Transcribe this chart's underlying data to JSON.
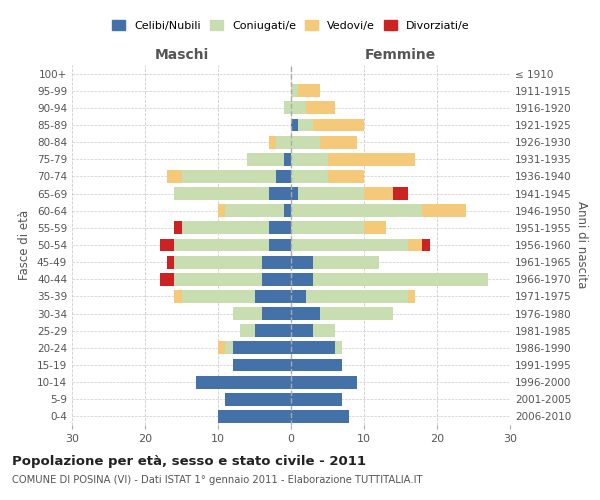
{
  "age_groups": [
    "0-4",
    "5-9",
    "10-14",
    "15-19",
    "20-24",
    "25-29",
    "30-34",
    "35-39",
    "40-44",
    "45-49",
    "50-54",
    "55-59",
    "60-64",
    "65-69",
    "70-74",
    "75-79",
    "80-84",
    "85-89",
    "90-94",
    "95-99",
    "100+"
  ],
  "birth_years": [
    "2006-2010",
    "2001-2005",
    "1996-2000",
    "1991-1995",
    "1986-1990",
    "1981-1985",
    "1976-1980",
    "1971-1975",
    "1966-1970",
    "1961-1965",
    "1956-1960",
    "1951-1955",
    "1946-1950",
    "1941-1945",
    "1936-1940",
    "1931-1935",
    "1926-1930",
    "1921-1925",
    "1916-1920",
    "1911-1915",
    "≤ 1910"
  ],
  "males": {
    "celibi": [
      10,
      9,
      13,
      8,
      8,
      5,
      4,
      5,
      4,
      4,
      3,
      3,
      1,
      3,
      2,
      1,
      0,
      0,
      0,
      0,
      0
    ],
    "coniugati": [
      0,
      0,
      0,
      0,
      1,
      2,
      4,
      10,
      12,
      12,
      13,
      12,
      8,
      13,
      13,
      5,
      2,
      0,
      1,
      0,
      0
    ],
    "vedovi": [
      0,
      0,
      0,
      0,
      1,
      0,
      0,
      1,
      0,
      0,
      0,
      0,
      1,
      0,
      2,
      0,
      1,
      0,
      0,
      0,
      0
    ],
    "divorziati": [
      0,
      0,
      0,
      0,
      0,
      0,
      0,
      0,
      2,
      1,
      2,
      1,
      0,
      0,
      0,
      0,
      0,
      0,
      0,
      0,
      0
    ]
  },
  "females": {
    "nubili": [
      8,
      7,
      9,
      7,
      6,
      3,
      4,
      2,
      3,
      3,
      0,
      0,
      0,
      1,
      0,
      0,
      0,
      1,
      0,
      0,
      0
    ],
    "coniugate": [
      0,
      0,
      0,
      0,
      1,
      3,
      10,
      14,
      24,
      9,
      16,
      10,
      18,
      9,
      5,
      5,
      4,
      2,
      2,
      1,
      0
    ],
    "vedove": [
      0,
      0,
      0,
      0,
      0,
      0,
      0,
      1,
      0,
      0,
      2,
      3,
      6,
      4,
      5,
      12,
      5,
      7,
      4,
      3,
      0
    ],
    "divorziate": [
      0,
      0,
      0,
      0,
      0,
      0,
      0,
      0,
      0,
      0,
      1,
      0,
      0,
      2,
      0,
      0,
      0,
      0,
      0,
      0,
      0
    ]
  },
  "colors": {
    "celibi": "#4472a8",
    "coniugati": "#c8ddb0",
    "vedovi": "#f5c97a",
    "divorziati": "#cc2222"
  },
  "title": "Popolazione per età, sesso e stato civile - 2011",
  "subtitle": "COMUNE DI POSINA (VI) - Dati ISTAT 1° gennaio 2011 - Elaborazione TUTTITALIA.IT",
  "xlabel_left": "Maschi",
  "xlabel_right": "Femmine",
  "ylabel_left": "Fasce di età",
  "ylabel_right": "Anni di nascita",
  "xlim": 30,
  "legend_labels": [
    "Celibi/Nubili",
    "Coniugati/e",
    "Vedovi/e",
    "Divorziati/e"
  ],
  "background_color": "#ffffff"
}
